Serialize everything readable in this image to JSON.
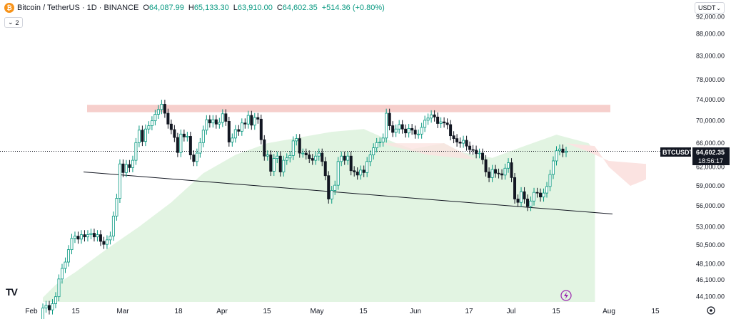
{
  "header": {
    "symbol": "Bitcoin / TetherUS · 1D · BINANCE",
    "open_label": "O",
    "open": "64,087.99",
    "high_label": "H",
    "high": "65,133.30",
    "low_label": "L",
    "low": "63,910.00",
    "close_label": "C",
    "close": "64,602.35",
    "change": "+514.36 (+0.80%)",
    "collapse_count": "2",
    "currency": "USDT"
  },
  "price_tag": {
    "symbol": "BTCUSDT",
    "price": "64,602.35",
    "countdown": "18:56:17"
  },
  "logo": "TV",
  "colors": {
    "up": "#089981",
    "down": "#131722",
    "resistance": "#f4c7c3",
    "cloud_green": "#dff3df",
    "cloud_red": "#fbe3e1"
  },
  "chart_data": {
    "type": "candlestick",
    "title": "Bitcoin / TetherUS · 1D · BINANCE",
    "y_ticks": [
      "92,000.00",
      "88,000.00",
      "83,000.00",
      "78,000.00",
      "74,000.00",
      "70,000.00",
      "66,000.00",
      "62,000.00",
      "59,000.00",
      "56,000.00",
      "53,000.00",
      "50,500.00",
      "48,100.00",
      "46,100.00",
      "44,100.00"
    ],
    "x_ticks": [
      "Feb",
      "15",
      "Mar",
      "18",
      "Apr",
      "15",
      "May",
      "15",
      "Jun",
      "17",
      "Jul",
      "15",
      "Aug",
      "15"
    ],
    "scale": "log",
    "ylim": [
      43500,
      94000
    ],
    "resistance_zone": {
      "low": 71600,
      "high": 73000,
      "from": "Feb 25",
      "to": "Jul 24"
    },
    "support_line": {
      "from_date": "Feb 21",
      "from_price": 61200,
      "to_date": "Jul 24",
      "to_price": 54800
    },
    "last_price": 64602.35,
    "closes": [
      [
        41500,
        42800
      ],
      [
        42800,
        43100
      ],
      [
        43100,
        42600
      ],
      [
        42600,
        43300
      ],
      [
        43300,
        44100
      ],
      [
        44100,
        46200
      ],
      [
        46200,
        47500
      ],
      [
        47500,
        48300
      ],
      [
        48300,
        49900
      ],
      [
        49900,
        51400
      ],
      [
        51400,
        51700
      ],
      [
        51700,
        51300
      ],
      [
        51300,
        51900
      ],
      [
        51900,
        51600
      ],
      [
        51600,
        51900
      ],
      [
        51900,
        52100
      ],
      [
        52100,
        51600
      ],
      [
        51600,
        51900
      ],
      [
        51900,
        51000
      ],
      [
        51000,
        50600
      ],
      [
        50600,
        51200
      ],
      [
        51200,
        51700
      ],
      [
        51700,
        54500
      ],
      [
        54500,
        57100
      ],
      [
        57100,
        62500
      ],
      [
        62500,
        61100
      ],
      [
        61100,
        62400
      ],
      [
        62400,
        61900
      ],
      [
        61900,
        63100
      ],
      [
        63100,
        66100
      ],
      [
        66100,
        68300
      ],
      [
        68300,
        66300
      ],
      [
        66300,
        68500
      ],
      [
        68500,
        69100
      ],
      [
        69100,
        70000
      ],
      [
        70000,
        71200
      ],
      [
        71200,
        72100
      ],
      [
        72100,
        73100
      ],
      [
        73100,
        71400
      ],
      [
        71400,
        69400
      ],
      [
        69400,
        68400
      ],
      [
        68400,
        67000
      ],
      [
        67000,
        64400
      ],
      [
        64400,
        67600
      ],
      [
        67600,
        67100
      ],
      [
        67100,
        67200
      ],
      [
        67200,
        64000
      ],
      [
        64000,
        62900
      ],
      [
        62900,
        64300
      ],
      [
        64300,
        66100
      ],
      [
        66100,
        68300
      ],
      [
        68300,
        70200
      ],
      [
        70200,
        69600
      ],
      [
        69600,
        70200
      ],
      [
        70200,
        69400
      ],
      [
        69400,
        69700
      ],
      [
        69700,
        71300
      ],
      [
        71300,
        69900
      ],
      [
        69900,
        66200
      ],
      [
        66200,
        66900
      ],
      [
        66900,
        68400
      ],
      [
        68400,
        68100
      ],
      [
        68100,
        69600
      ],
      [
        69600,
        69400
      ],
      [
        69400,
        71000
      ],
      [
        71000,
        69200
      ],
      [
        69200,
        70600
      ],
      [
        70600,
        70300
      ],
      [
        70300,
        66600
      ],
      [
        66600,
        63800
      ],
      [
        63800,
        64000
      ],
      [
        64000,
        61300
      ],
      [
        61300,
        63400
      ],
      [
        63400,
        63800
      ],
      [
        63800,
        61200
      ],
      [
        61200,
        63100
      ],
      [
        63100,
        63500
      ],
      [
        63500,
        63900
      ],
      [
        63900,
        66400
      ],
      [
        66400,
        66800
      ],
      [
        66800,
        64300
      ],
      [
        64300,
        64300
      ],
      [
        64300,
        64000
      ],
      [
        64000,
        63400
      ],
      [
        63400,
        63100
      ],
      [
        63100,
        63800
      ],
      [
        63800,
        64300
      ],
      [
        64300,
        62900
      ],
      [
        62900,
        60600
      ],
      [
        60600,
        57000
      ],
      [
        57000,
        58300
      ],
      [
        58300,
        59100
      ],
      [
        59100,
        62900
      ],
      [
        62900,
        63800
      ],
      [
        63800,
        63100
      ],
      [
        63100,
        63800
      ],
      [
        63800,
        61400
      ],
      [
        61400,
        61200
      ],
      [
        61200,
        60700
      ],
      [
        60700,
        61500
      ],
      [
        61500,
        61100
      ],
      [
        61100,
        62900
      ],
      [
        62900,
        64000
      ],
      [
        64000,
        65200
      ],
      [
        65200,
        66100
      ],
      [
        66100,
        66200
      ],
      [
        66200,
        66900
      ],
      [
        66900,
        71400
      ],
      [
        71400,
        69100
      ],
      [
        69100,
        67900
      ],
      [
        67900,
        68500
      ],
      [
        68500,
        69300
      ],
      [
        69300,
        68500
      ],
      [
        68500,
        67800
      ],
      [
        67800,
        68600
      ],
      [
        68600,
        68300
      ],
      [
        68300,
        67600
      ],
      [
        67600,
        67600
      ],
      [
        67600,
        68800
      ],
      [
        68800,
        70100
      ],
      [
        70100,
        70500
      ],
      [
        70500,
        71100
      ],
      [
        71100,
        70700
      ],
      [
        70700,
        69500
      ],
      [
        69500,
        69800
      ],
      [
        69800,
        69600
      ],
      [
        69600,
        69300
      ],
      [
        69300,
        67300
      ],
      [
        67300,
        66800
      ],
      [
        66800,
        66200
      ],
      [
        66200,
        66000
      ],
      [
        66000,
        66500
      ],
      [
        66500,
        65500
      ],
      [
        65500,
        64900
      ],
      [
        64900,
        64800
      ],
      [
        64800,
        64200
      ],
      [
        64200,
        64300
      ],
      [
        64300,
        63200
      ],
      [
        63200,
        61200
      ],
      [
        61200,
        60300
      ],
      [
        60300,
        61600
      ],
      [
        61600,
        61000
      ],
      [
        61000,
        60900
      ],
      [
        60900,
        60700
      ],
      [
        60700,
        61800
      ],
      [
        61800,
        62700
      ],
      [
        62700,
        60300
      ],
      [
        60300,
        57000
      ],
      [
        57000,
        56500
      ],
      [
        56500,
        58100
      ],
      [
        58100,
        57000
      ],
      [
        57000,
        55900
      ],
      [
        55900,
        56700
      ],
      [
        56700,
        58000
      ],
      [
        58000,
        57900
      ],
      [
        57900,
        57300
      ],
      [
        57300,
        57900
      ],
      [
        57900,
        58900
      ],
      [
        58900,
        60800
      ],
      [
        60800,
        63000
      ],
      [
        63000,
        64700
      ],
      [
        64700,
        65000
      ],
      [
        65000,
        64400
      ],
      [
        64400,
        64602
      ]
    ],
    "cloud_tops": [
      [
        0,
        44000
      ],
      [
        4,
        45500
      ],
      [
        10,
        47000
      ],
      [
        20,
        50000
      ],
      [
        30,
        53000
      ],
      [
        40,
        56500
      ],
      [
        50,
        61000
      ],
      [
        60,
        64000
      ],
      [
        70,
        66000
      ],
      [
        80,
        67000
      ],
      [
        90,
        68000
      ],
      [
        100,
        68500
      ],
      [
        110,
        66000
      ],
      [
        115,
        65000
      ],
      [
        125,
        66000
      ],
      [
        130,
        64500
      ],
      [
        140,
        63500
      ],
      [
        150,
        65500
      ],
      [
        160,
        67500
      ],
      [
        170,
        66000
      ],
      [
        172,
        64500
      ]
    ]
  }
}
